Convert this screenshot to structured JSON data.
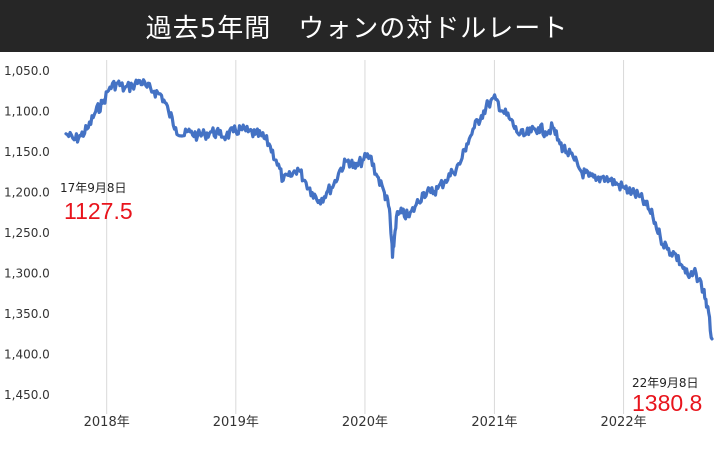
{
  "title": "過去5年間　ウォンの対ドルレート",
  "colors": {
    "header_bg": "#262626",
    "header_text": "#ffffff",
    "line": "#4472c4",
    "annotation_value": "#e8141c",
    "grid": "#d9d9d9",
    "axis_text": "#333333"
  },
  "chart_data": {
    "type": "line",
    "title": "過去5年間　ウォンの対ドルレート",
    "xlabel": "",
    "ylabel": "",
    "y_inverted": true,
    "ylim": [
      1050,
      1450
    ],
    "y_ticks": [
      1050,
      1100,
      1150,
      1200,
      1250,
      1300,
      1350,
      1400,
      1450
    ],
    "y_tick_labels": [
      "1,050.0",
      "1,100.0",
      "1,150.0",
      "1,200.0",
      "1,250.0",
      "1,300.0",
      "1,350.0",
      "1,400.0",
      "1,450.0"
    ],
    "x_range": [
      "2017-09-08",
      "2022-09-08"
    ],
    "x_ticks": [
      "2018",
      "2019",
      "2020",
      "2021",
      "2022"
    ],
    "x_tick_labels": [
      "2018年",
      "2019年",
      "2020年",
      "2021年",
      "2022年"
    ],
    "grid": "vertical",
    "legend": "none",
    "series": [
      {
        "x": [
          "2017-09-08",
          "2017-10-01",
          "2017-10-20",
          "2017-11-10",
          "2017-12-01",
          "2017-12-20",
          "2018-01-10",
          "2018-02-01",
          "2018-02-20",
          "2018-03-15",
          "2018-04-05",
          "2018-04-25",
          "2018-05-15",
          "2018-06-05",
          "2018-06-25",
          "2018-07-15",
          "2018-08-05",
          "2018-08-25",
          "2018-09-15",
          "2018-10-05",
          "2018-10-25",
          "2018-11-15",
          "2018-12-05",
          "2018-12-25",
          "2019-01-15",
          "2019-02-05",
          "2019-02-25",
          "2019-03-15",
          "2019-04-05",
          "2019-04-25",
          "2019-05-15",
          "2019-06-05",
          "2019-06-25",
          "2019-07-15",
          "2019-08-05",
          "2019-08-25",
          "2019-09-15",
          "2019-10-05",
          "2019-10-25",
          "2019-11-15",
          "2019-12-05",
          "2019-12-25",
          "2020-01-15",
          "2020-02-05",
          "2020-02-25",
          "2020-03-10",
          "2020-03-19",
          "2020-03-30",
          "2020-04-15",
          "2020-05-05",
          "2020-05-25",
          "2020-06-15",
          "2020-07-05",
          "2020-07-25",
          "2020-08-15",
          "2020-09-05",
          "2020-09-25",
          "2020-10-15",
          "2020-11-05",
          "2020-11-25",
          "2020-12-15",
          "2021-01-05",
          "2021-01-25",
          "2021-02-15",
          "2021-03-05",
          "2021-03-25",
          "2021-04-15",
          "2021-05-05",
          "2021-05-25",
          "2021-06-15",
          "2021-07-05",
          "2021-07-25",
          "2021-08-15",
          "2021-09-05",
          "2021-09-25",
          "2021-10-15",
          "2021-11-05",
          "2021-11-25",
          "2021-12-15",
          "2022-01-05",
          "2022-01-25",
          "2022-02-15",
          "2022-03-05",
          "2022-03-25",
          "2022-04-15",
          "2022-05-05",
          "2022-05-25",
          "2022-06-15",
          "2022-07-05",
          "2022-07-25",
          "2022-08-15",
          "2022-08-25",
          "2022-09-08"
        ],
        "y": [
          1127.5,
          1135,
          1130,
          1120,
          1100,
          1090,
          1070,
          1065,
          1072,
          1068,
          1062,
          1070,
          1075,
          1080,
          1100,
          1120,
          1130,
          1125,
          1130,
          1128,
          1125,
          1128,
          1130,
          1125,
          1122,
          1125,
          1128,
          1130,
          1140,
          1160,
          1185,
          1180,
          1170,
          1185,
          1200,
          1210,
          1200,
          1190,
          1170,
          1160,
          1170,
          1160,
          1155,
          1180,
          1200,
          1220,
          1280,
          1230,
          1225,
          1230,
          1215,
          1200,
          1200,
          1195,
          1185,
          1175,
          1165,
          1140,
          1120,
          1105,
          1090,
          1085,
          1100,
          1110,
          1125,
          1130,
          1125,
          1120,
          1125,
          1120,
          1140,
          1150,
          1160,
          1175,
          1180,
          1185,
          1180,
          1185,
          1190,
          1195,
          1200,
          1205,
          1215,
          1230,
          1255,
          1270,
          1275,
          1290,
          1305,
          1300,
          1320,
          1340,
          1380.8
        ],
        "annotations": [
          {
            "date_label": "17年9月8日",
            "value_label": "1127.5"
          },
          {
            "date_label": "22年9月8日",
            "value_label": "1380.8"
          }
        ]
      }
    ]
  }
}
